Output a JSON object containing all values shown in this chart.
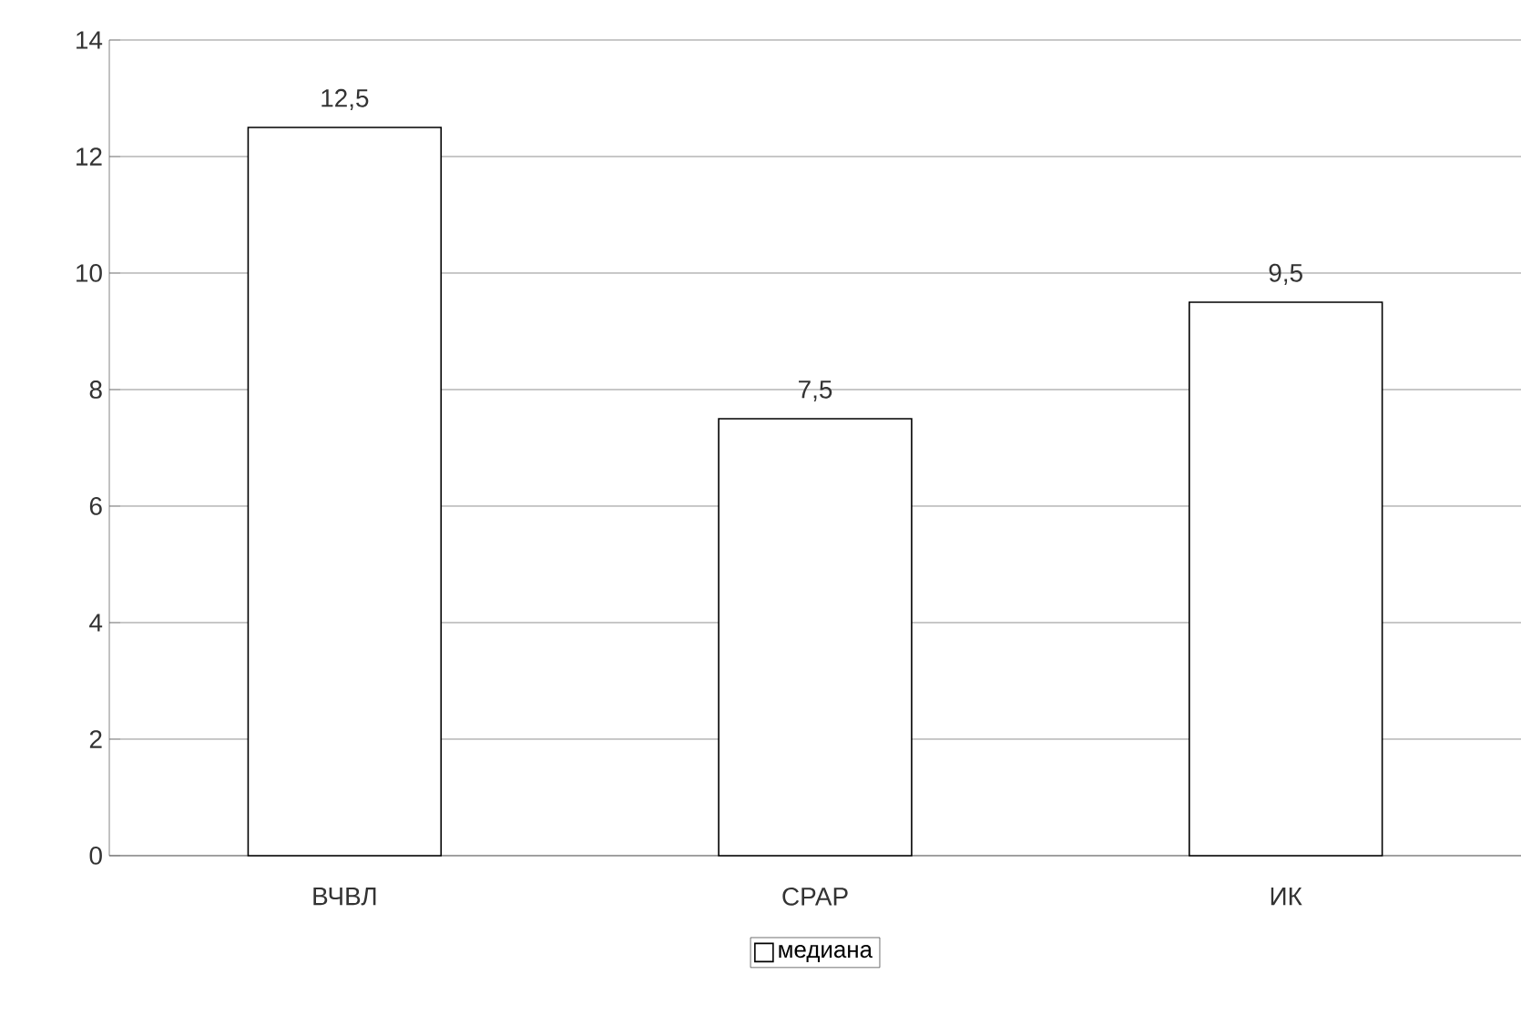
{
  "chart_data": {
    "type": "bar",
    "categories": [
      "ВЧВЛ",
      "СРАР",
      "ИК"
    ],
    "series": [
      {
        "name": "медиана",
        "color": "#ffffff",
        "values": [
          12.5,
          7.5,
          9.5
        ],
        "value_labels": [
          "12,5",
          "7,5",
          "9,5"
        ]
      }
    ],
    "ylim": [
      0,
      14
    ],
    "yticks": [
      0,
      2,
      4,
      6,
      8,
      10,
      12,
      14
    ],
    "grid": "y",
    "legend": "bottom"
  }
}
